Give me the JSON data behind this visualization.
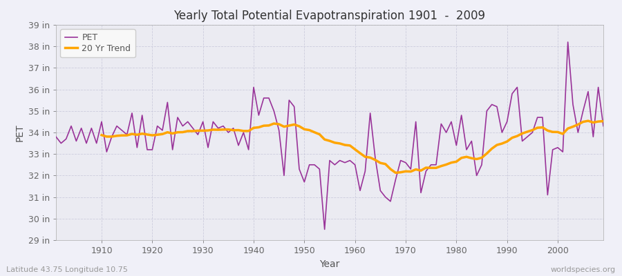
{
  "title": "Yearly Total Potential Evapotranspiration 1901  -  2009",
  "xlabel": "Year",
  "ylabel": "PET",
  "subtitle_left": "Latitude 43.75 Longitude 10.75",
  "subtitle_right": "worldspecies.org",
  "pet_color": "#993399",
  "trend_color": "#FFA500",
  "background_color": "#f0f0f8",
  "plot_bg_color": "#ebebf2",
  "grid_color": "#ccccdd",
  "ylim_min": 29,
  "ylim_max": 39,
  "xlim_min": 1901,
  "xlim_max": 2009,
  "legend_labels": [
    "PET",
    "20 Yr Trend"
  ],
  "xticks": [
    1910,
    1920,
    1930,
    1940,
    1950,
    1960,
    1970,
    1980,
    1990,
    2000
  ],
  "years": [
    1901,
    1902,
    1903,
    1904,
    1905,
    1906,
    1907,
    1908,
    1909,
    1910,
    1911,
    1912,
    1913,
    1914,
    1915,
    1916,
    1917,
    1918,
    1919,
    1920,
    1921,
    1922,
    1923,
    1924,
    1925,
    1926,
    1927,
    1928,
    1929,
    1930,
    1931,
    1932,
    1933,
    1934,
    1935,
    1936,
    1937,
    1938,
    1939,
    1940,
    1941,
    1942,
    1943,
    1944,
    1945,
    1946,
    1947,
    1948,
    1949,
    1950,
    1951,
    1952,
    1953,
    1954,
    1955,
    1956,
    1957,
    1958,
    1959,
    1960,
    1961,
    1962,
    1963,
    1964,
    1965,
    1966,
    1967,
    1968,
    1969,
    1970,
    1971,
    1972,
    1973,
    1974,
    1975,
    1976,
    1977,
    1978,
    1979,
    1980,
    1981,
    1982,
    1983,
    1984,
    1985,
    1986,
    1987,
    1988,
    1989,
    1990,
    1991,
    1992,
    1993,
    1994,
    1995,
    1996,
    1997,
    1998,
    1999,
    2000,
    2001,
    2002,
    2003,
    2004,
    2005,
    2006,
    2007,
    2008,
    2009
  ],
  "pet_values": [
    33.8,
    33.5,
    33.7,
    34.3,
    33.6,
    34.2,
    33.5,
    34.2,
    33.5,
    34.5,
    33.1,
    33.8,
    34.3,
    34.1,
    33.9,
    34.9,
    33.3,
    34.8,
    33.2,
    33.2,
    34.3,
    34.1,
    35.4,
    33.2,
    34.7,
    34.3,
    34.5,
    34.2,
    33.9,
    34.5,
    33.3,
    34.5,
    34.2,
    34.3,
    34.0,
    34.2,
    33.4,
    34.0,
    33.2,
    36.1,
    34.8,
    35.6,
    35.6,
    35.0,
    34.1,
    32.0,
    35.5,
    35.2,
    32.3,
    31.7,
    32.5,
    32.5,
    32.3,
    29.5,
    32.7,
    32.5,
    32.7,
    32.6,
    32.7,
    32.5,
    31.3,
    32.2,
    34.9,
    32.8,
    31.3,
    31.0,
    30.8,
    31.8,
    32.7,
    32.6,
    32.3,
    34.5,
    31.2,
    32.2,
    32.5,
    32.5,
    34.4,
    34.0,
    34.5,
    33.4,
    34.8,
    33.2,
    33.6,
    32.0,
    32.5,
    35.0,
    35.3,
    35.2,
    34.0,
    34.5,
    35.8,
    36.1,
    33.6,
    33.8,
    34.0,
    34.7,
    34.7,
    31.1,
    33.2,
    33.3,
    33.1,
    38.2,
    35.3,
    34.0,
    35.0,
    35.9,
    33.8,
    36.1,
    34.3
  ],
  "trend_window": 20
}
